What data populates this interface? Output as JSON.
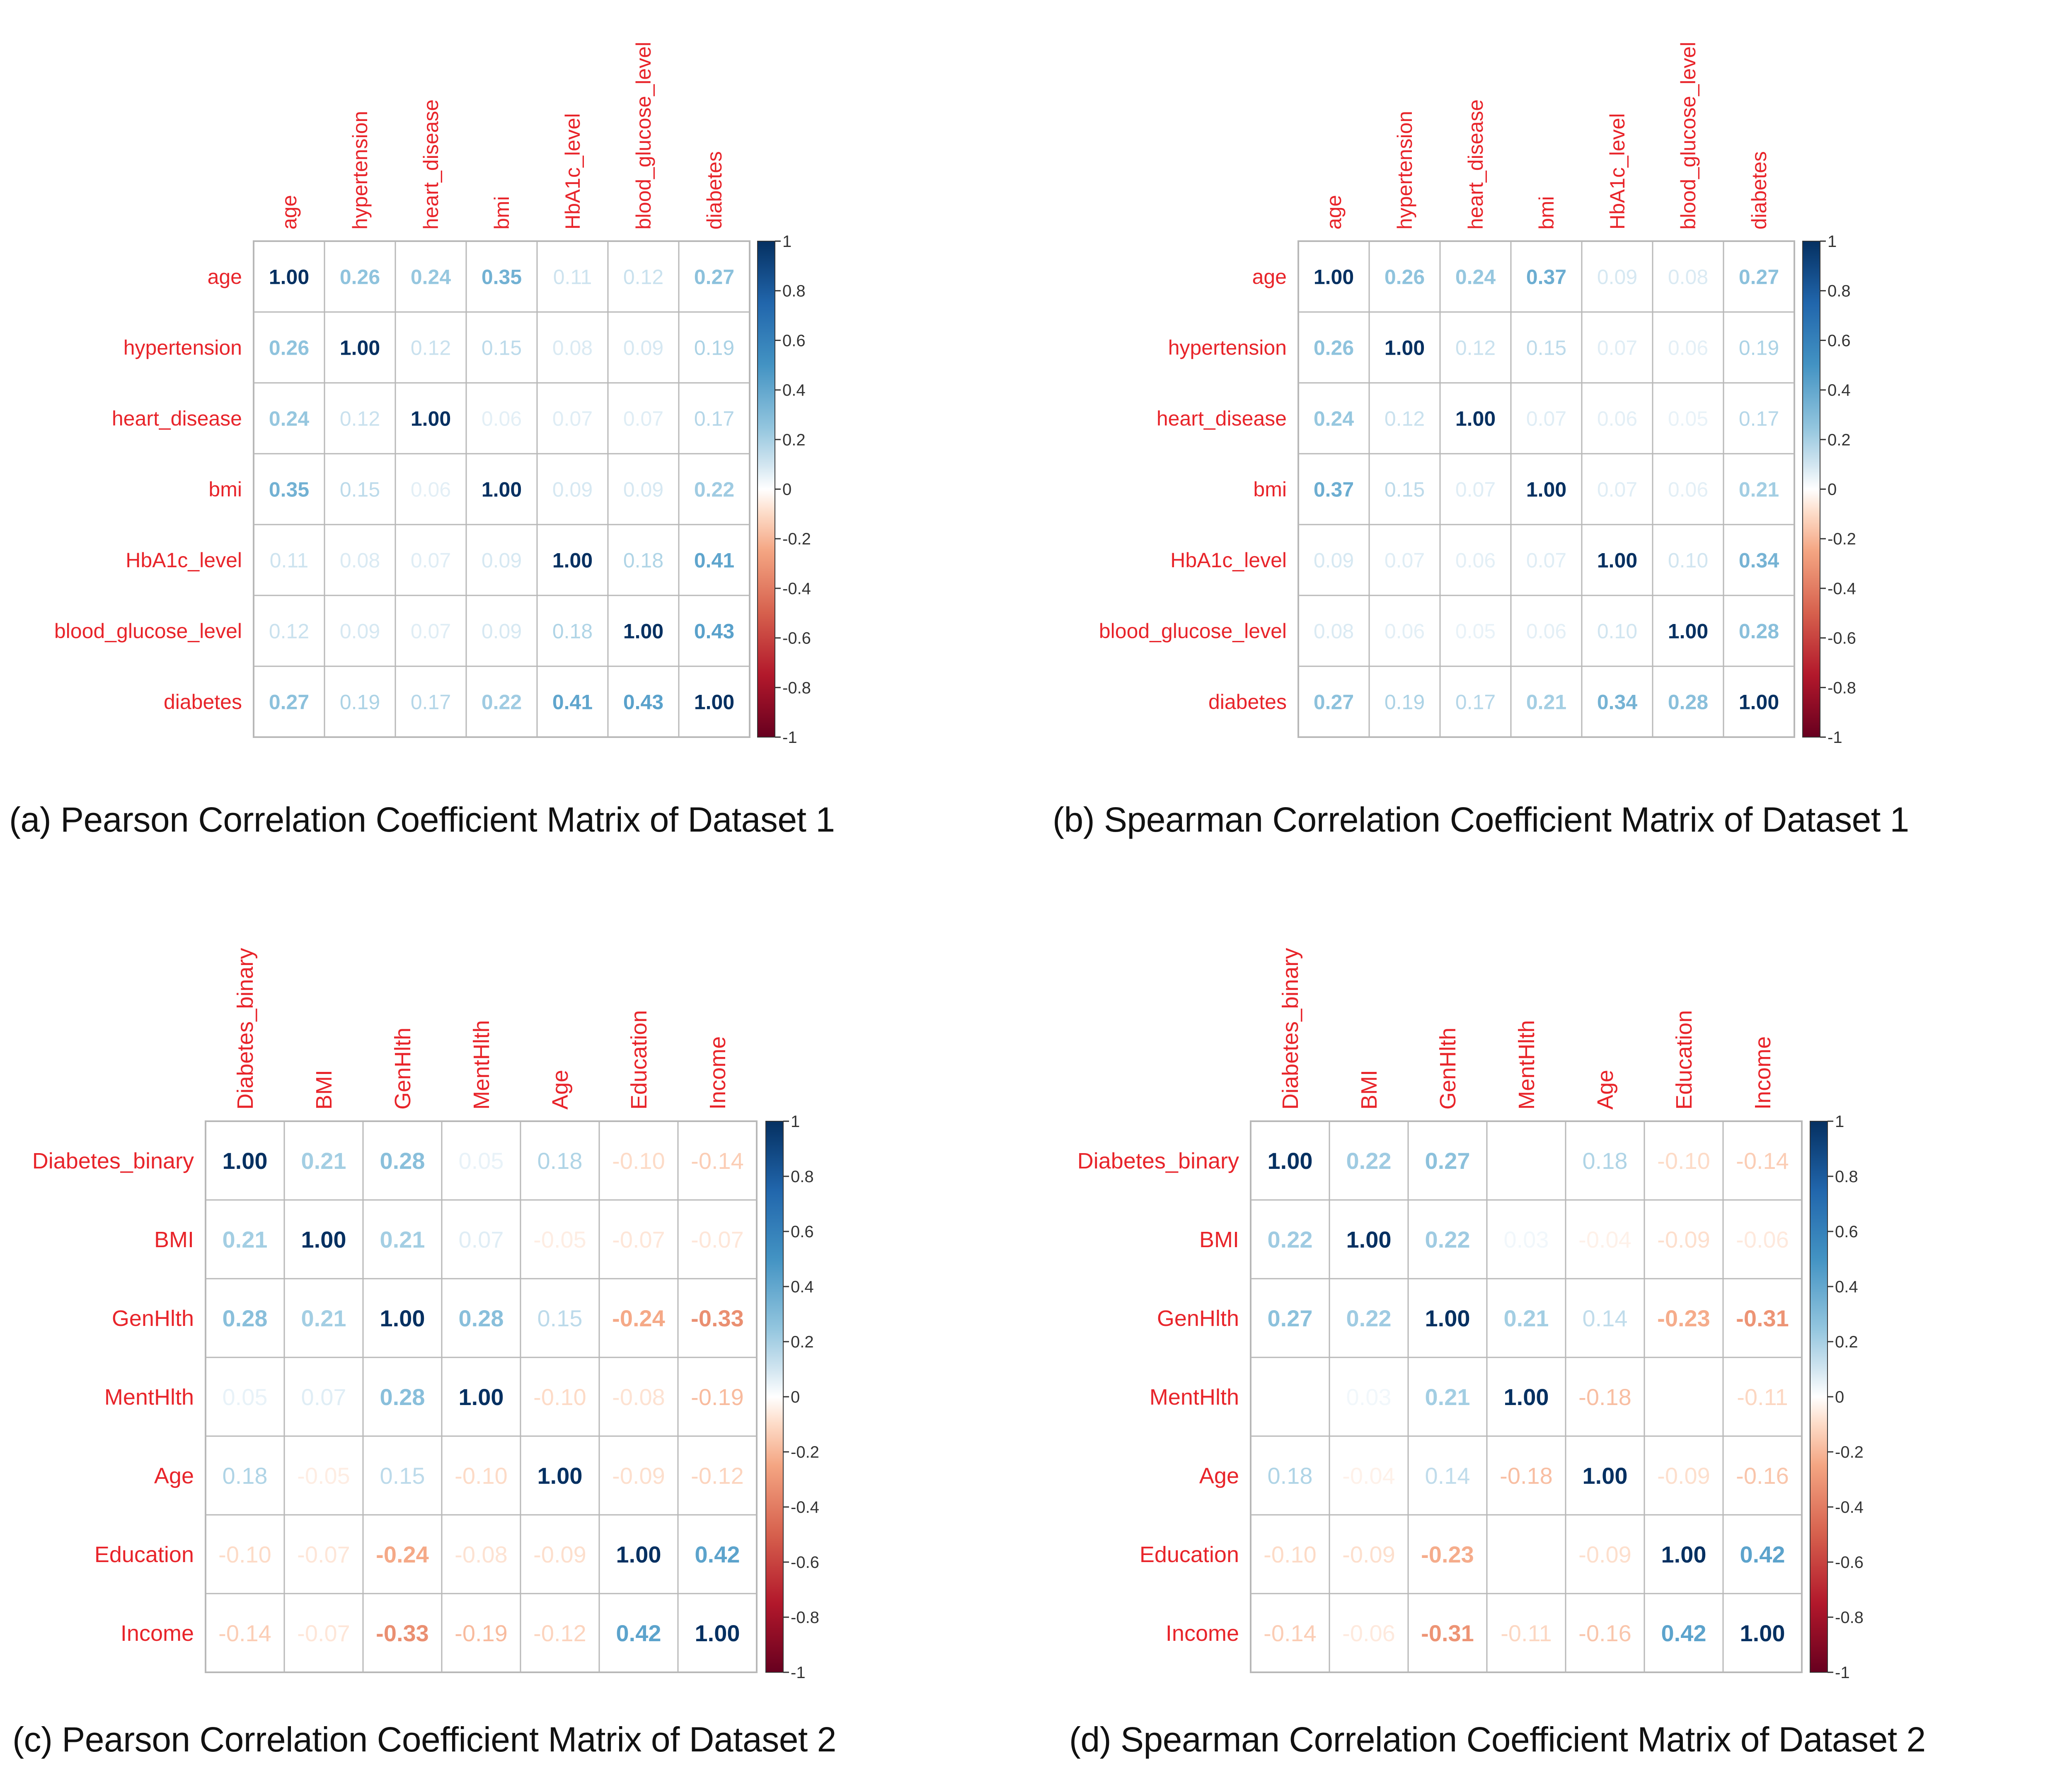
{
  "figure": {
    "captions": [
      "(a) Pearson Correlation Coefficient Matrix of Dataset 1",
      "(b) Spearman Correlation Coefficient Matrix of Dataset 1",
      "(c) Pearson Correlation Coefficient Matrix of Dataset 2",
      "(d) Spearman Correlation Coefficient Matrix of Dataset 2"
    ]
  },
  "colors": {
    "label_red": "#e8242a",
    "scale_neg1": "#67001f",
    "scale_neg05": "#f4a582",
    "scale_0": "#ffffff",
    "scale_pos05": "#92c5de",
    "scale_pos1": "#053061",
    "grid": "#b8b8b8",
    "tick_text": "#333333"
  },
  "chart_data": [
    {
      "type": "heatmap",
      "title": "(a) Pearson Correlation Coefficient Matrix of Dataset 1",
      "variables": [
        "age",
        "hypertension",
        "heart_disease",
        "bmi",
        "HbA1c_level",
        "blood_glucose_level",
        "diabetes"
      ],
      "matrix": [
        [
          1.0,
          0.26,
          0.24,
          0.35,
          0.11,
          0.12,
          0.27
        ],
        [
          0.26,
          1.0,
          0.12,
          0.15,
          0.08,
          0.09,
          0.19
        ],
        [
          0.24,
          0.12,
          1.0,
          0.06,
          0.07,
          0.07,
          0.17
        ],
        [
          0.35,
          0.15,
          0.06,
          1.0,
          0.09,
          0.09,
          0.22
        ],
        [
          0.11,
          0.08,
          0.07,
          0.09,
          1.0,
          0.18,
          0.41
        ],
        [
          0.12,
          0.09,
          0.07,
          0.09,
          0.18,
          1.0,
          0.43
        ],
        [
          0.27,
          0.19,
          0.17,
          0.22,
          0.41,
          0.43,
          1.0
        ]
      ],
      "colorbar": {
        "range": [
          -1,
          1
        ],
        "ticks": [
          "1",
          "0.8",
          "0.6",
          "0.4",
          "0.2",
          "0",
          "-0.2",
          "-0.4",
          "-0.6",
          "-0.8",
          "-1"
        ]
      }
    },
    {
      "type": "heatmap",
      "title": "(b) Spearman Correlation Coefficient Matrix of Dataset 1",
      "variables": [
        "age",
        "hypertension",
        "heart_disease",
        "bmi",
        "HbA1c_level",
        "blood_glucose_level",
        "diabetes"
      ],
      "matrix": [
        [
          1.0,
          0.26,
          0.24,
          0.37,
          0.09,
          0.08,
          0.27
        ],
        [
          0.26,
          1.0,
          0.12,
          0.15,
          0.07,
          0.06,
          0.19
        ],
        [
          0.24,
          0.12,
          1.0,
          0.07,
          0.06,
          0.05,
          0.17
        ],
        [
          0.37,
          0.15,
          0.07,
          1.0,
          0.07,
          0.06,
          0.21
        ],
        [
          0.09,
          0.07,
          0.06,
          0.07,
          1.0,
          0.1,
          0.34
        ],
        [
          0.08,
          0.06,
          0.05,
          0.06,
          0.1,
          1.0,
          0.28
        ],
        [
          0.27,
          0.19,
          0.17,
          0.21,
          0.34,
          0.28,
          1.0
        ]
      ],
      "colorbar": {
        "range": [
          -1,
          1
        ],
        "ticks": [
          "1",
          "0.8",
          "0.6",
          "0.4",
          "0.2",
          "0",
          "-0.2",
          "-0.4",
          "-0.6",
          "-0.8",
          "-1"
        ]
      }
    },
    {
      "type": "heatmap",
      "title": "(c) Pearson Correlation Coefficient Matrix of Dataset 2",
      "variables": [
        "Diabetes_binary",
        "BMI",
        "GenHlth",
        "MentHlth",
        "Age",
        "Education",
        "Income"
      ],
      "matrix": [
        [
          1.0,
          0.21,
          0.28,
          0.05,
          0.18,
          -0.1,
          -0.14
        ],
        [
          0.21,
          1.0,
          0.21,
          0.07,
          -0.05,
          -0.07,
          -0.07
        ],
        [
          0.28,
          0.21,
          1.0,
          0.28,
          0.15,
          -0.24,
          -0.33
        ],
        [
          0.05,
          0.07,
          0.28,
          1.0,
          -0.1,
          -0.08,
          -0.19
        ],
        [
          0.18,
          -0.05,
          0.15,
          -0.1,
          1.0,
          -0.09,
          -0.12
        ],
        [
          -0.1,
          -0.07,
          -0.24,
          -0.08,
          -0.09,
          1.0,
          0.42
        ],
        [
          -0.14,
          -0.07,
          -0.33,
          -0.19,
          -0.12,
          0.42,
          1.0
        ]
      ],
      "colorbar": {
        "range": [
          -1,
          1
        ],
        "ticks": [
          "1",
          "0.8",
          "0.6",
          "0.4",
          "0.2",
          "0",
          "-0.2",
          "-0.4",
          "-0.6",
          "-0.8",
          "-1"
        ]
      }
    },
    {
      "type": "heatmap",
      "title": "(d) Spearman Correlation Coefficient Matrix of Dataset 2",
      "variables": [
        "Diabetes_binary",
        "BMI",
        "GenHlth",
        "MentHlth",
        "Age",
        "Education",
        "Income"
      ],
      "matrix": [
        [
          1.0,
          0.22,
          0.27,
          null,
          0.18,
          -0.1,
          -0.14
        ],
        [
          0.22,
          1.0,
          0.22,
          0.03,
          -0.04,
          -0.09,
          -0.06
        ],
        [
          0.27,
          0.22,
          1.0,
          0.21,
          0.14,
          -0.23,
          -0.31
        ],
        [
          null,
          0.03,
          0.21,
          1.0,
          -0.18,
          null,
          -0.11
        ],
        [
          0.18,
          -0.04,
          0.14,
          -0.18,
          1.0,
          -0.09,
          -0.16
        ],
        [
          -0.1,
          -0.09,
          -0.23,
          null,
          -0.09,
          1.0,
          0.42
        ],
        [
          -0.14,
          -0.06,
          -0.31,
          -0.11,
          -0.16,
          0.42,
          1.0
        ]
      ],
      "colorbar": {
        "range": [
          -1,
          1
        ],
        "ticks": [
          "1",
          "0.8",
          "0.6",
          "0.4",
          "0.2",
          "0",
          "-0.2",
          "-0.4",
          "-0.6",
          "-0.8",
          "-1"
        ]
      }
    }
  ]
}
